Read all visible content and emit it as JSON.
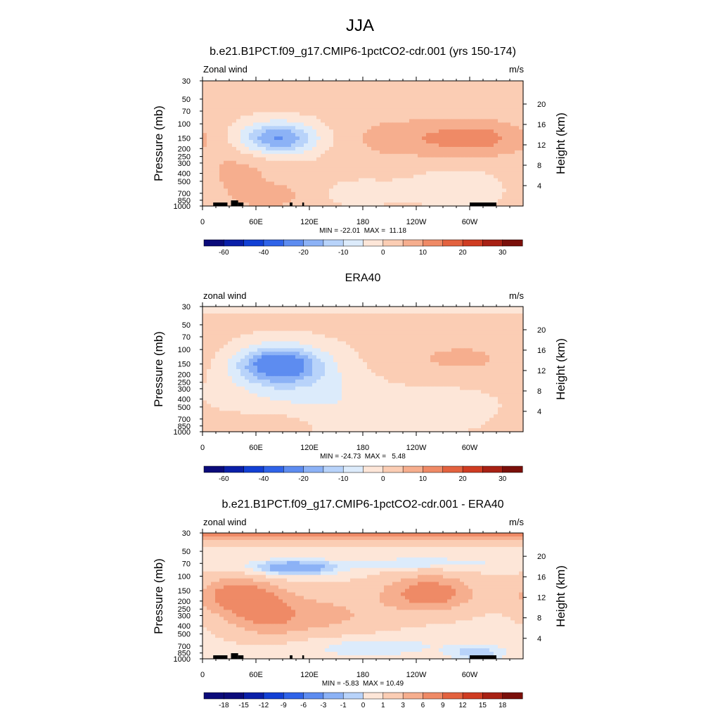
{
  "figure": {
    "main_title": "JJA"
  },
  "chart_data": [
    {
      "type": "heatmap",
      "title": "b.e21.B1PCT.f09_g17.CMIP6-1pctCO2-cdr.001 (yrs 150-174)",
      "left_label": "Zonal wind",
      "right_label": "m/s",
      "ylabel": "Pressure (mb)",
      "ylabel_right": "Height (km)",
      "x_ticks": [
        "0",
        "60E",
        "120E",
        "180",
        "120W",
        "60W"
      ],
      "y_ticks": [
        "30",
        "50",
        "70",
        "100",
        "150",
        "200",
        "250",
        "300",
        "400",
        "500",
        "700",
        "850",
        "1000"
      ],
      "y_right_ticks": [
        "20",
        "16",
        "12",
        "8",
        "4"
      ],
      "stats": "MIN = -22.01  MAX =  11.18",
      "min": -22.01,
      "max": 11.18,
      "colorbar_labels": [
        "-60",
        "-40",
        "-20",
        "-10",
        "0",
        "10",
        "20",
        "30"
      ],
      "features": [
        {
          "lon": 85,
          "p": 150,
          "amp": -22,
          "dlon": 30,
          "dlp": 0.32
        },
        {
          "lon": 305,
          "p": 150,
          "amp": 11,
          "dlon": 40,
          "dlp": 0.35
        },
        {
          "lon": 220,
          "p": 150,
          "amp": 6,
          "dlon": 40,
          "dlp": 0.4
        },
        {
          "lon": 75,
          "p": 750,
          "amp": 7,
          "dlon": 25,
          "dlp": 0.22
        },
        {
          "lon": 40,
          "p": 400,
          "amp": 5,
          "dlon": 30,
          "dlp": 0.5
        },
        {
          "lon": 175,
          "p": 700,
          "amp": -3,
          "dlon": 30,
          "dlp": 0.3
        },
        {
          "lon": 285,
          "p": 600,
          "amp": -4,
          "dlon": 45,
          "dlp": 0.4
        }
      ],
      "background": 1.5,
      "topography": true
    },
    {
      "type": "heatmap",
      "title": "ERA40",
      "left_label": "zonal wind",
      "right_label": "m/s",
      "ylabel": "Pressure (mb)",
      "ylabel_right": "Height (km)",
      "x_ticks": [
        "0",
        "60E",
        "120E",
        "180",
        "120W",
        "60W"
      ],
      "y_ticks": [
        "30",
        "50",
        "70",
        "100",
        "150",
        "200",
        "250",
        "300",
        "400",
        "500",
        "700",
        "850",
        "1000"
      ],
      "y_right_ticks": [
        "20",
        "16",
        "12",
        "8",
        "4"
      ],
      "stats": "MIN = -24.73  MAX =   5.48",
      "min": -24.73,
      "max": 5.48,
      "colorbar_labels": [
        "-60",
        "-40",
        "-20",
        "-10",
        "0",
        "10",
        "20",
        "30"
      ],
      "features": [
        {
          "lon": 85,
          "p": 150,
          "amp": -24,
          "dlon": 32,
          "dlp": 0.35
        },
        {
          "lon": 100,
          "p": 250,
          "amp": -8,
          "dlon": 50,
          "dlp": 0.6
        },
        {
          "lon": 290,
          "p": 130,
          "amp": 5,
          "dlon": 55,
          "dlp": 0.4
        },
        {
          "lon": 80,
          "p": 800,
          "amp": 4,
          "dlon": 30,
          "dlp": 0.2
        },
        {
          "lon": 170,
          "p": 600,
          "amp": -4,
          "dlon": 40,
          "dlp": 0.5
        },
        {
          "lon": 270,
          "p": 500,
          "amp": -3,
          "dlon": 40,
          "dlp": 0.5
        },
        {
          "lon": 180,
          "p": 30,
          "amp": -6,
          "dlon": 400,
          "dlp": 0.12
        }
      ],
      "background": 1.0,
      "topography": false
    },
    {
      "type": "heatmap",
      "title": "b.e21.B1PCT.f09_g17.CMIP6-1pctCO2-cdr.001 - ERA40",
      "left_label": "zonal wind",
      "right_label": "m/s",
      "ylabel": "Pressure (mb)",
      "ylabel_right": "Height (km)",
      "x_ticks": [
        "0",
        "60E",
        "120E",
        "180",
        "120W",
        "60W"
      ],
      "y_ticks": [
        "30",
        "50",
        "70",
        "100",
        "150",
        "200",
        "250",
        "300",
        "400",
        "500",
        "700",
        "850",
        "1000"
      ],
      "y_right_ticks": [
        "20",
        "16",
        "12",
        "8",
        "4"
      ],
      "stats": "MIN = -5.83  MAX = 10.49",
      "min": -5.83,
      "max": 10.49,
      "colorbar_labels": [
        "-18",
        "-15",
        "-12",
        "-9",
        "-6",
        "-3",
        "-1",
        "0",
        "1",
        "3",
        "6",
        "9",
        "12",
        "15",
        "18"
      ],
      "features": [
        {
          "lon": 180,
          "p": 30,
          "amp": 9,
          "dlon": 400,
          "dlp": 0.15
        },
        {
          "lon": 100,
          "p": 80,
          "amp": -5,
          "dlon": 40,
          "dlp": 0.18
        },
        {
          "lon": 250,
          "p": 70,
          "amp": -3,
          "dlon": 60,
          "dlp": 0.12
        },
        {
          "lon": 40,
          "p": 170,
          "amp": 9,
          "dlon": 30,
          "dlp": 0.35
        },
        {
          "lon": 70,
          "p": 300,
          "amp": 6,
          "dlon": 30,
          "dlp": 0.4
        },
        {
          "lon": 255,
          "p": 160,
          "amp": 9,
          "dlon": 35,
          "dlp": 0.35
        },
        {
          "lon": 140,
          "p": 300,
          "amp": 4,
          "dlon": 50,
          "dlp": 0.5
        },
        {
          "lon": 180,
          "p": 700,
          "amp": -3,
          "dlon": 60,
          "dlp": 0.25
        },
        {
          "lon": 310,
          "p": 850,
          "amp": -3,
          "dlon": 25,
          "dlp": 0.2
        }
      ],
      "background": 2.5,
      "topography": true
    }
  ]
}
